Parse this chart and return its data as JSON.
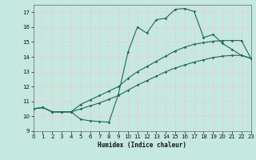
{
  "title": "",
  "xlabel": "Humidex (Indice chaleur)",
  "bg_color": "#c5e8e0",
  "grid_color": "#e8d0d0",
  "line_color": "#1a6b5a",
  "line1_x": [
    0,
    1,
    2,
    3,
    4,
    5,
    6,
    7,
    8,
    9,
    10,
    11,
    12,
    13,
    14,
    15,
    16,
    17,
    18,
    19,
    20,
    21,
    22,
    23
  ],
  "line1_y": [
    10.5,
    10.6,
    10.3,
    10.3,
    10.3,
    9.8,
    9.7,
    9.65,
    9.6,
    11.5,
    14.3,
    16.0,
    15.6,
    16.5,
    16.6,
    17.2,
    17.25,
    17.05,
    15.3,
    15.5,
    14.9,
    14.5,
    14.1,
    13.9
  ],
  "line2_x": [
    0,
    1,
    2,
    3,
    4,
    5,
    6,
    7,
    8,
    9,
    10,
    11,
    12,
    13,
    14,
    15,
    16,
    17,
    18,
    19,
    20,
    21,
    22,
    23
  ],
  "line2_y": [
    10.5,
    10.6,
    10.3,
    10.3,
    10.3,
    10.5,
    10.7,
    10.9,
    11.15,
    11.4,
    11.75,
    12.1,
    12.4,
    12.7,
    13.0,
    13.25,
    13.45,
    13.65,
    13.8,
    13.95,
    14.05,
    14.1,
    14.1,
    13.9
  ],
  "line3_x": [
    0,
    1,
    2,
    3,
    4,
    5,
    6,
    7,
    8,
    9,
    10,
    11,
    12,
    13,
    14,
    15,
    16,
    17,
    18,
    19,
    20,
    21,
    22,
    23
  ],
  "line3_y": [
    10.5,
    10.6,
    10.3,
    10.3,
    10.3,
    10.8,
    11.1,
    11.4,
    11.7,
    12.0,
    12.55,
    13.0,
    13.35,
    13.7,
    14.05,
    14.4,
    14.65,
    14.85,
    14.95,
    15.05,
    15.1,
    15.1,
    15.1,
    13.9
  ],
  "xlim": [
    0,
    23
  ],
  "ylim": [
    9,
    17.5
  ],
  "yticks": [
    9,
    10,
    11,
    12,
    13,
    14,
    15,
    16,
    17
  ],
  "xticks": [
    0,
    1,
    2,
    3,
    4,
    5,
    6,
    7,
    8,
    9,
    10,
    11,
    12,
    13,
    14,
    15,
    16,
    17,
    18,
    19,
    20,
    21,
    22,
    23
  ]
}
